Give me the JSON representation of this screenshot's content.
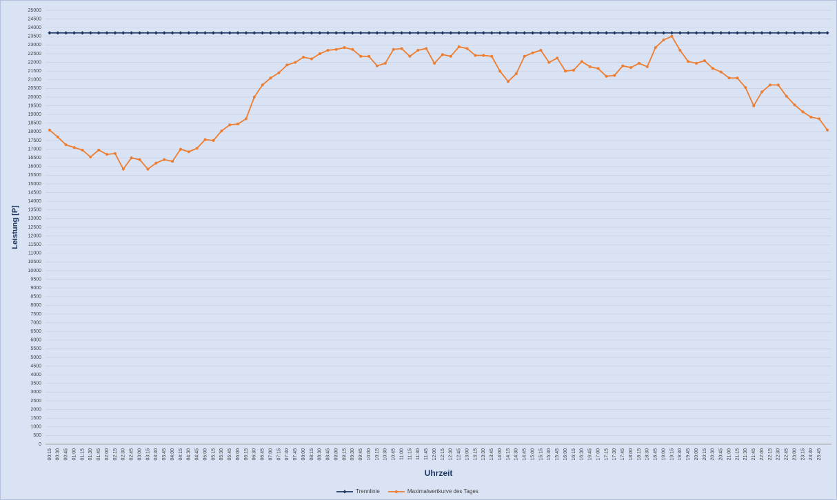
{
  "chart_data": {
    "type": "line",
    "x_label": "Uhrzeit",
    "y_label": "Leistung [P]",
    "categories": [
      "00:15",
      "00:30",
      "00:45",
      "01:00",
      "01:15",
      "01:30",
      "01:45",
      "02:00",
      "02:15",
      "02:30",
      "02:45",
      "03:00",
      "03:15",
      "03:30",
      "03:45",
      "04:00",
      "04:15",
      "04:30",
      "04:45",
      "05:00",
      "05:15",
      "05:30",
      "05:45",
      "06:00",
      "06:15",
      "06:30",
      "06:45",
      "07:00",
      "07:15",
      "07:30",
      "07:45",
      "08:00",
      "08:15",
      "08:30",
      "08:45",
      "09:00",
      "09:15",
      "09:30",
      "09:45",
      "10:00",
      "10:15",
      "10:30",
      "10:45",
      "11:00",
      "11:15",
      "11:30",
      "11:45",
      "12:00",
      "12:15",
      "12:30",
      "12:45",
      "13:00",
      "13:15",
      "13:30",
      "13:45",
      "14:00",
      "14:15",
      "14:30",
      "14:45",
      "15:00",
      "15:15",
      "15:30",
      "15:45",
      "16:00",
      "16:15",
      "16:30",
      "16:45",
      "17:00",
      "17:15",
      "17:30",
      "17:45",
      "18:00",
      "18:15",
      "18:30",
      "18:45",
      "19:00",
      "19:15",
      "19:30",
      "19:45",
      "20:00",
      "20:15",
      "20:30",
      "20:45",
      "21:00",
      "21:15",
      "21:30",
      "21:45",
      "22:00",
      "22:15",
      "22:30",
      "22:45",
      "23:00",
      "23:15",
      "23:30",
      "23:45",
      null
    ],
    "series": [
      {
        "name": "Trennlinie",
        "color": "#1f3864",
        "marker": "diamond",
        "values": [
          23700,
          23700,
          23700,
          23700,
          23700,
          23700,
          23700,
          23700,
          23700,
          23700,
          23700,
          23700,
          23700,
          23700,
          23700,
          23700,
          23700,
          23700,
          23700,
          23700,
          23700,
          23700,
          23700,
          23700,
          23700,
          23700,
          23700,
          23700,
          23700,
          23700,
          23700,
          23700,
          23700,
          23700,
          23700,
          23700,
          23700,
          23700,
          23700,
          23700,
          23700,
          23700,
          23700,
          23700,
          23700,
          23700,
          23700,
          23700,
          23700,
          23700,
          23700,
          23700,
          23700,
          23700,
          23700,
          23700,
          23700,
          23700,
          23700,
          23700,
          23700,
          23700,
          23700,
          23700,
          23700,
          23700,
          23700,
          23700,
          23700,
          23700,
          23700,
          23700,
          23700,
          23700,
          23700,
          23700,
          23700,
          23700,
          23700,
          23700,
          23700,
          23700,
          23700,
          23700,
          23700,
          23700,
          23700,
          23700,
          23700,
          23700,
          23700,
          23700,
          23700,
          23700,
          23700,
          23700
        ]
      },
      {
        "name": "Maximalwertkurve des Tages",
        "color": "#ed7d31",
        "marker": "circle",
        "values": [
          18100,
          17700,
          17250,
          17100,
          16950,
          16550,
          16950,
          16700,
          16750,
          15850,
          16500,
          16400,
          15850,
          16200,
          16400,
          16300,
          17000,
          16850,
          17050,
          17550,
          17500,
          18050,
          18400,
          18450,
          18750,
          20000,
          20700,
          21100,
          21400,
          21850,
          22000,
          22300,
          22200,
          22500,
          22700,
          22750,
          22850,
          22750,
          22350,
          22350,
          21800,
          21950,
          22750,
          22800,
          22350,
          22700,
          22800,
          21950,
          22450,
          22350,
          22900,
          22800,
          22400,
          22400,
          22350,
          21500,
          20900,
          21350,
          22350,
          22550,
          22700,
          22000,
          22250,
          21500,
          21550,
          22050,
          21750,
          21650,
          21200,
          21250,
          21800,
          21700,
          21950,
          21750,
          22850,
          23300,
          23500,
          22700,
          22050,
          21950,
          22100,
          21650,
          21450,
          21100,
          21100,
          20550,
          19500,
          20300,
          20700,
          20700,
          20050,
          19550,
          19150,
          18850,
          18750,
          18100
        ]
      }
    ],
    "ylim": [
      0,
      25000
    ],
    "yticks": [
      0,
      500,
      1000,
      1500,
      2000,
      2500,
      3000,
      3500,
      4000,
      4500,
      5000,
      5500,
      6000,
      6500,
      7000,
      7500,
      8000,
      8500,
      9000,
      9500,
      10000,
      10500,
      11000,
      11500,
      12000,
      12500,
      13000,
      13500,
      14000,
      14500,
      15000,
      15500,
      16000,
      16500,
      17000,
      17500,
      18000,
      18500,
      19000,
      19500,
      20000,
      20500,
      21000,
      21500,
      22000,
      22500,
      23000,
      23500,
      24000,
      24500,
      25000
    ],
    "grid": true,
    "legend": "bottom"
  }
}
